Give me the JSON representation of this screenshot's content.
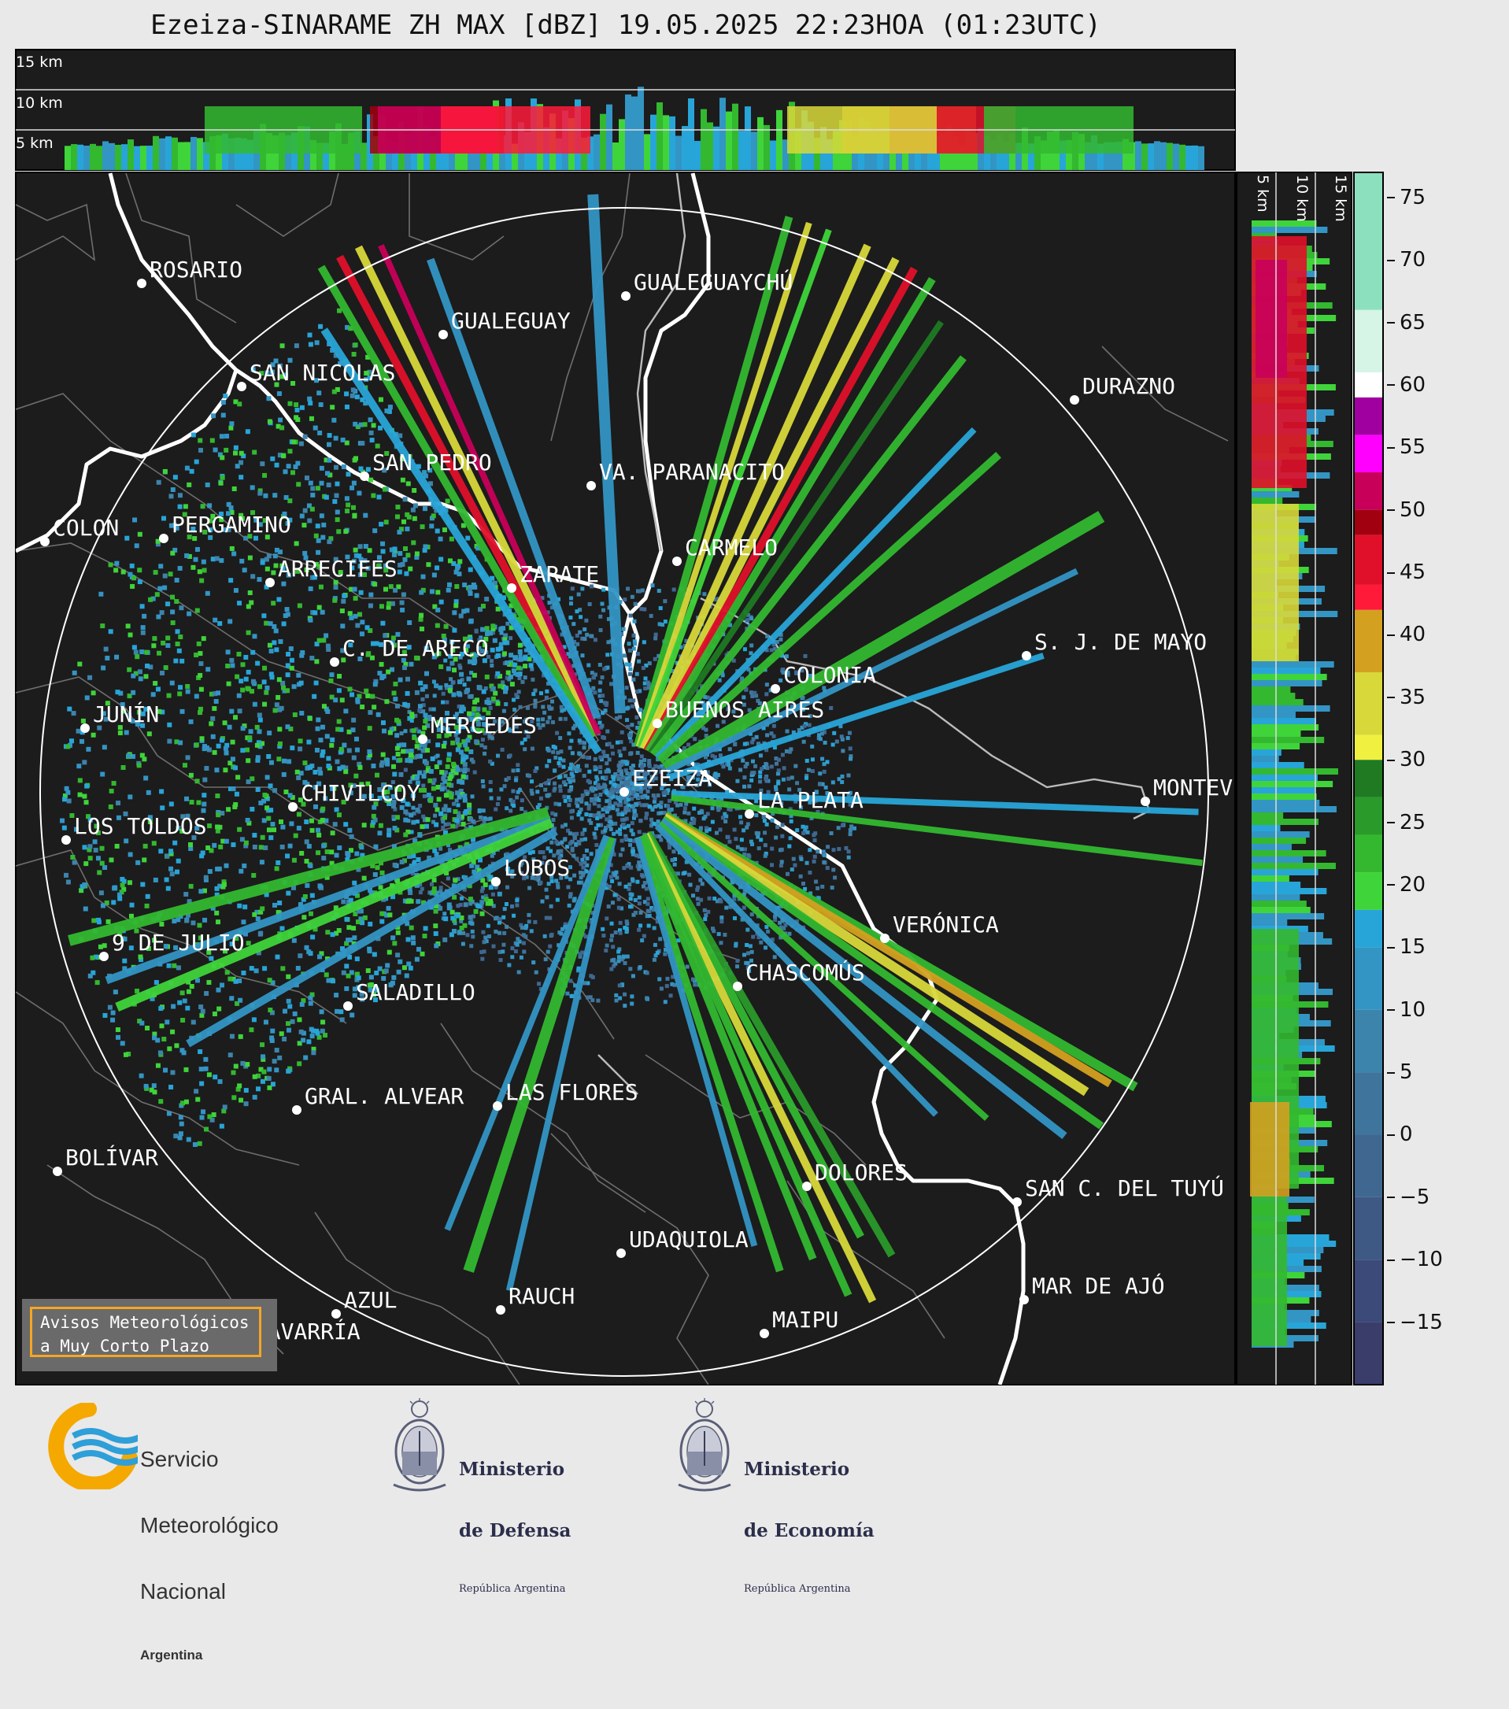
{
  "title": "Ezeiza-SINARAME ZH MAX [dBZ] 19.05.2025 22:23HOA (01:23UTC)",
  "top_panel": {
    "height_labels": [
      "15 km",
      "10 km",
      "5 km"
    ]
  },
  "side_panel": {
    "height_labels": [
      "5 km",
      "10 km",
      "15 km"
    ]
  },
  "colorbar": {
    "unit": "dBZ",
    "ticks": [
      "75",
      "70",
      "65",
      "60",
      "55",
      "50",
      "45",
      "40",
      "35",
      "30",
      "25",
      "20",
      "15",
      "10",
      "5",
      "0",
      "−5",
      "−10",
      "−15"
    ],
    "tick_values": [
      75,
      70,
      65,
      60,
      55,
      50,
      45,
      40,
      35,
      30,
      25,
      20,
      15,
      10,
      5,
      0,
      -5,
      -10,
      -15
    ],
    "range": [
      -20,
      77
    ],
    "bands": [
      {
        "from": -20,
        "to": -15,
        "color": "#3a3c6a"
      },
      {
        "from": -15,
        "to": -10,
        "color": "#3b4a78"
      },
      {
        "from": -10,
        "to": -5,
        "color": "#3d5984"
      },
      {
        "from": -5,
        "to": 0,
        "color": "#3f6790"
      },
      {
        "from": 0,
        "to": 5,
        "color": "#3f759c"
      },
      {
        "from": 5,
        "to": 10,
        "color": "#3c84ab"
      },
      {
        "from": 10,
        "to": 15,
        "color": "#3395c4"
      },
      {
        "from": 15,
        "to": 18,
        "color": "#28a5d8"
      },
      {
        "from": 18,
        "to": 21,
        "color": "#3fd43a"
      },
      {
        "from": 21,
        "to": 24,
        "color": "#33b830"
      },
      {
        "from": 24,
        "to": 27,
        "color": "#2a9a2a"
      },
      {
        "from": 27,
        "to": 30,
        "color": "#1f7a22"
      },
      {
        "from": 30,
        "to": 32,
        "color": "#f0f040"
      },
      {
        "from": 32,
        "to": 37,
        "color": "#d8d83a"
      },
      {
        "from": 37,
        "to": 42,
        "color": "#d4a020"
      },
      {
        "from": 42,
        "to": 44,
        "color": "#ff1a3a"
      },
      {
        "from": 44,
        "to": 48,
        "color": "#e0102a"
      },
      {
        "from": 48,
        "to": 50,
        "color": "#a00010"
      },
      {
        "from": 50,
        "to": 53,
        "color": "#c8005a"
      },
      {
        "from": 53,
        "to": 56,
        "color": "#ff00ff"
      },
      {
        "from": 56,
        "to": 59,
        "color": "#a000a0"
      },
      {
        "from": 59,
        "to": 61,
        "color": "#ffffff"
      },
      {
        "from": 61,
        "to": 66,
        "color": "#d6f5e6"
      },
      {
        "from": 66,
        "to": 77,
        "color": "#8de0be"
      }
    ]
  },
  "radar": {
    "name": "EZEIZA",
    "range_ring_color": "#ffffff",
    "background": "#1c1c1c"
  },
  "cities": [
    {
      "name": "ROSARIO"
    },
    {
      "name": "GUALEGUAYCHÚ"
    },
    {
      "name": "GUALEGUAY"
    },
    {
      "name": "SAN NICOLAS"
    },
    {
      "name": "DURAZNO"
    },
    {
      "name": "SAN PEDRO"
    },
    {
      "name": "VA. PARANACITO"
    },
    {
      "name": "COLON"
    },
    {
      "name": "PERGAMINO"
    },
    {
      "name": "CARMELO"
    },
    {
      "name": "ARRECIFES"
    },
    {
      "name": "ZARATE"
    },
    {
      "name": "S. J. DE MAYO"
    },
    {
      "name": "C. DE ARECO"
    },
    {
      "name": "COLONIA"
    },
    {
      "name": "JUNÍN"
    },
    {
      "name": "BUENOS AIRES"
    },
    {
      "name": "MERCEDES"
    },
    {
      "name": "MONTEV"
    },
    {
      "name": "EZEIZA"
    },
    {
      "name": "CHIVILCOY"
    },
    {
      "name": "LA PLATA"
    },
    {
      "name": "LOS TOLDOS"
    },
    {
      "name": "LOBOS"
    },
    {
      "name": "VERÓNICA"
    },
    {
      "name": "9 DE JULIO"
    },
    {
      "name": "CHASCOMÚS"
    },
    {
      "name": "SALADILLO"
    },
    {
      "name": "GRAL. ALVEAR"
    },
    {
      "name": "LAS FLORES"
    },
    {
      "name": "BOLÍVAR"
    },
    {
      "name": "DOLORES"
    },
    {
      "name": "SAN C. DEL TUYÚ"
    },
    {
      "name": "UDAQUIOLA"
    },
    {
      "name": "AZUL"
    },
    {
      "name": "RAUCH"
    },
    {
      "name": "MAR DE AJÓ"
    },
    {
      "name": "OLAVARRÍA"
    },
    {
      "name": "MAIPU"
    }
  ],
  "alert_badge": {
    "line1": "Avisos Meteorológicos",
    "line2": "a Muy Corto Plazo"
  },
  "footer": {
    "smn": {
      "line1": "Servicio",
      "line2": "Meteorológico",
      "line3": "Nacional",
      "line4": "Argentina",
      "brand_blue": "#2e9fd8",
      "brand_yellow": "#f5a800"
    },
    "defensa": {
      "line1": "Ministerio",
      "line2": "de Defensa",
      "line3": "República Argentina"
    },
    "economia": {
      "line1": "Ministerio",
      "line2": "de Economía",
      "line3": "República Argentina"
    }
  }
}
